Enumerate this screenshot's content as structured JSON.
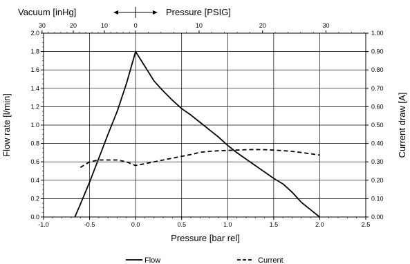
{
  "chart_data": {
    "type": "line",
    "title": "",
    "xlabel": "Pressure [bar rel]",
    "ylabel_left": "Flow rate [l/min]",
    "ylabel_right": "Current draw [A]",
    "top_axis": {
      "label_vacuum": "Vacuum [inHg]",
      "label_pressure": "Pressure [PSIG]",
      "ticks": [
        {
          "label": "30",
          "bar": -1.016
        },
        {
          "label": "20",
          "bar": -0.677
        },
        {
          "label": "10",
          "bar": -0.339
        },
        {
          "label": "0",
          "bar": 0.0
        },
        {
          "label": "10",
          "bar": 0.6895
        },
        {
          "label": "20",
          "bar": 1.379
        },
        {
          "label": "30",
          "bar": 2.068
        }
      ]
    },
    "xlim": [
      -1.0,
      2.5
    ],
    "x_ticks": [
      "-1.0",
      "-0.5",
      "0.0",
      "0.5",
      "1.0",
      "1.5",
      "2.0",
      "2.5"
    ],
    "ylim_left": [
      0,
      2.0
    ],
    "y_ticks_left": [
      "0.0",
      "0.2",
      "0.4",
      "0.6",
      "0.8",
      "1.0",
      "1.2",
      "1.4",
      "1.6",
      "1.8",
      "2.0"
    ],
    "ylim_right": [
      0,
      1.0
    ],
    "y_ticks_right": [
      "0.00",
      "0.10",
      "0.20",
      "0.30",
      "0.40",
      "0.50",
      "0.60",
      "0.70",
      "0.80",
      "0.90",
      "1.00"
    ],
    "grid": true,
    "legend_position": "bottom",
    "series": [
      {
        "name": "Flow",
        "axis": "left",
        "style": "solid",
        "x": [
          -0.66,
          -0.6,
          -0.5,
          -0.4,
          -0.3,
          -0.2,
          -0.1,
          0.0,
          0.1,
          0.2,
          0.3,
          0.4,
          0.5,
          0.6,
          0.7,
          0.8,
          0.9,
          1.0,
          1.1,
          1.2,
          1.3,
          1.4,
          1.5,
          1.6,
          1.7,
          1.8,
          1.9,
          2.0
        ],
        "values": [
          0.0,
          0.14,
          0.38,
          0.64,
          0.9,
          1.15,
          1.45,
          1.8,
          1.64,
          1.48,
          1.37,
          1.27,
          1.18,
          1.11,
          1.03,
          0.95,
          0.87,
          0.78,
          0.7,
          0.63,
          0.56,
          0.49,
          0.42,
          0.36,
          0.27,
          0.16,
          0.08,
          0.0
        ]
      },
      {
        "name": "Current",
        "axis": "right",
        "style": "dashed",
        "x": [
          -0.6,
          -0.5,
          -0.4,
          -0.3,
          -0.2,
          -0.1,
          0.0,
          0.1,
          0.2,
          0.3,
          0.4,
          0.5,
          0.6,
          0.7,
          0.8,
          0.9,
          1.0,
          1.1,
          1.2,
          1.3,
          1.4,
          1.5,
          1.6,
          1.7,
          1.8,
          1.9,
          2.0
        ],
        "values": [
          0.27,
          0.3,
          0.31,
          0.31,
          0.31,
          0.3,
          0.28,
          0.29,
          0.3,
          0.31,
          0.32,
          0.33,
          0.34,
          0.352,
          0.357,
          0.36,
          0.362,
          0.364,
          0.366,
          0.367,
          0.366,
          0.364,
          0.361,
          0.357,
          0.351,
          0.344,
          0.337
        ]
      }
    ]
  }
}
